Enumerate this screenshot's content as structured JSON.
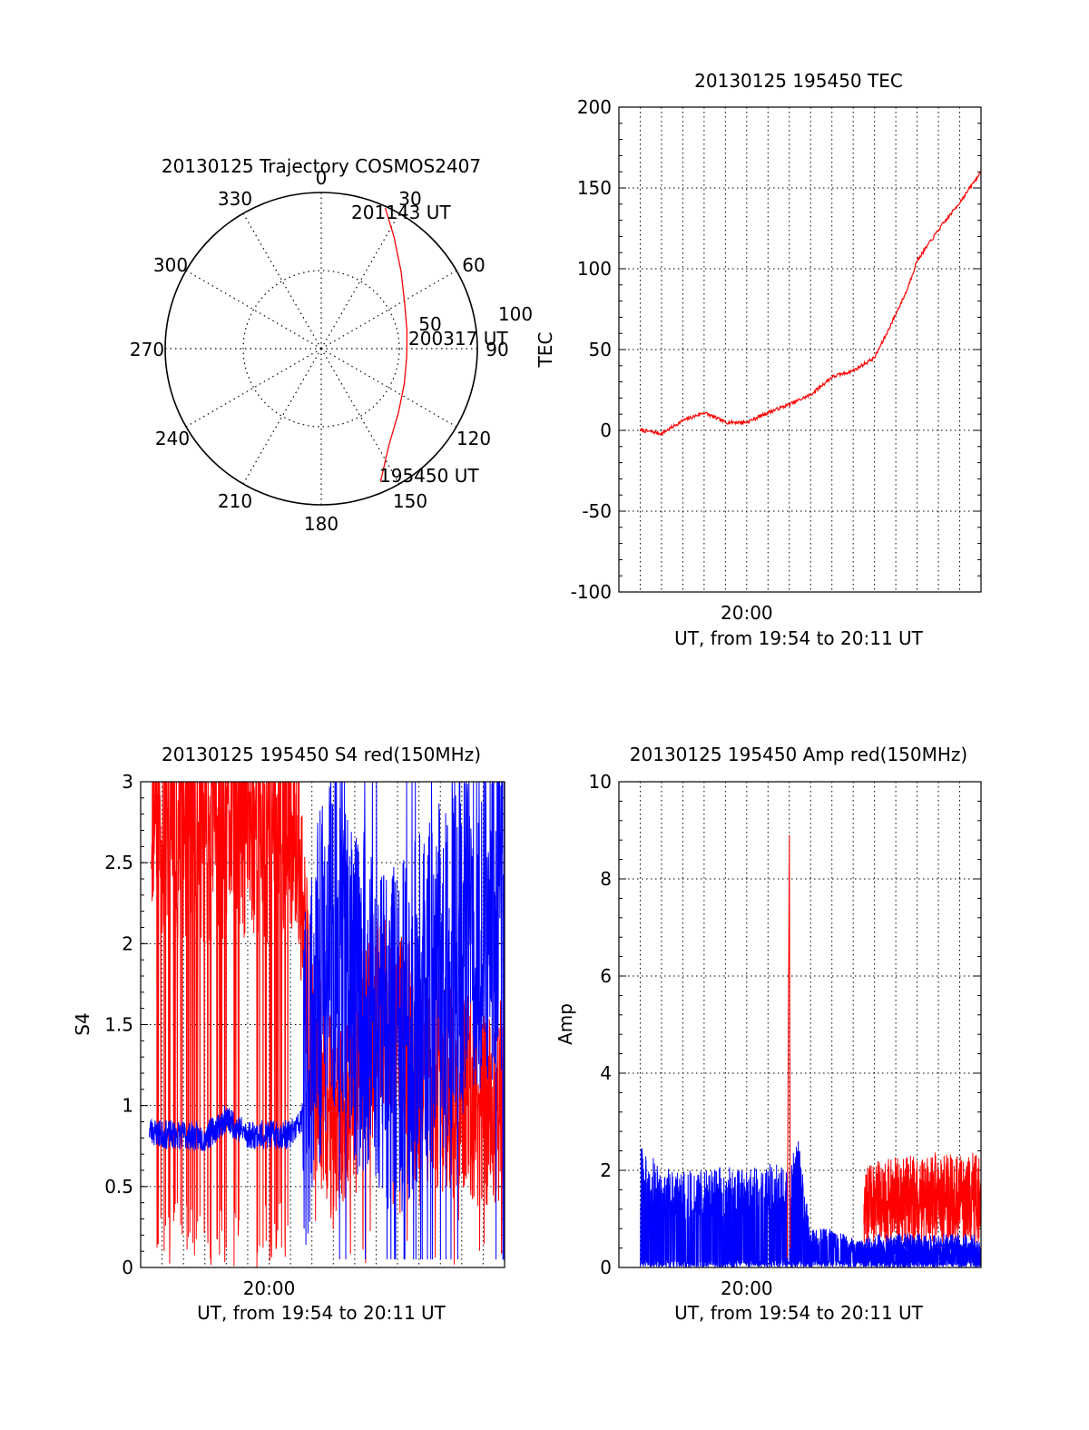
{
  "colors": {
    "red": "#ff0000",
    "blue": "#0000ff",
    "axis": "#000000",
    "grid": "#000000"
  },
  "chart_data": [
    {
      "id": "trajectory",
      "type": "scatter",
      "projection": "polar",
      "title": "20130125 Trajectory COSMOS2407",
      "azimuth_labels": [
        "0",
        "30",
        "60",
        "90",
        "120",
        "150",
        "180",
        "210",
        "240",
        "270",
        "300",
        "330"
      ],
      "radius_labels": [
        "50",
        "100"
      ],
      "grid": true,
      "series": [
        {
          "color": "red",
          "points": [
            {
              "az": 156.0,
              "r": 84.0
            },
            {
              "az": 145.0,
              "r": 68.0
            },
            {
              "az": 130.0,
              "r": 58.0
            },
            {
              "az": 113.0,
              "r": 52.0
            },
            {
              "az": 95.0,
              "r": 49.5
            },
            {
              "az": 78.0,
              "r": 50.5
            },
            {
              "az": 62.0,
              "r": 54.5
            },
            {
              "az": 46.0,
              "r": 64.0
            },
            {
              "az": 33.0,
              "r": 77.0
            },
            {
              "az": 24.5,
              "r": 89.0
            }
          ]
        }
      ],
      "annotations": [
        {
          "text": "201143 UT",
          "az": 27.0,
          "r": 91.0
        },
        {
          "text": "200317 UT",
          "az": 80.0,
          "r": 52.0
        },
        {
          "text": "195450 UT",
          "az": 154.0,
          "r": 84.0
        }
      ]
    },
    {
      "id": "tec",
      "type": "line",
      "title": "20130125 195450 TEC",
      "xlabel": "UT, from 19:54 to 20:11 UT",
      "ylabel": "TEC",
      "x_ticks": [
        {
          "label": "20:00",
          "t": 6.0
        }
      ],
      "x_range": [
        0,
        17
      ],
      "ylim": [
        -100,
        200
      ],
      "y_ticks": [
        -100,
        -50,
        0,
        50,
        100,
        150,
        200
      ],
      "grid": true,
      "series": [
        {
          "color": "red",
          "x": [
            1.0,
            1.6,
            2.0,
            3.0,
            4.0,
            5.0,
            6.0,
            7.0,
            8.0,
            9.0,
            10.0,
            11.0,
            12.0,
            12.5,
            13.0,
            13.5,
            14.0,
            15.0,
            16.0,
            17.0
          ],
          "y": [
            0,
            -1,
            -2,
            6,
            11,
            5,
            5,
            11,
            16,
            22,
            33,
            37,
            45,
            58,
            72,
            86,
            105,
            124,
            141,
            160
          ]
        }
      ]
    },
    {
      "id": "s4",
      "type": "line",
      "title": "20130125 195450 S4 red(150MHz)",
      "xlabel": "UT, from 19:54 to 20:11 UT",
      "ylabel": "S4",
      "x_ticks": [
        {
          "label": "20:00",
          "t": 6.0
        }
      ],
      "x_range": [
        0,
        17
      ],
      "ylim": [
        0,
        3
      ],
      "y_ticks": [
        "0",
        "0.5",
        "1",
        "1.5",
        "2",
        "2.5",
        "3"
      ],
      "grid": true,
      "series": [
        {
          "color": "red",
          "x": [
            0.5,
            1.0,
            2.0,
            3.0,
            4.0,
            5.0,
            6.0,
            7.0,
            7.5,
            8.0,
            9.0,
            10.0,
            11.0,
            12.0,
            13.0,
            14.0,
            15.0,
            16.0,
            17.0
          ],
          "y": [
            2.8,
            3.0,
            3.0,
            3.0,
            3.0,
            3.0,
            3.0,
            3.0,
            2.4,
            1.3,
            0.9,
            1.2,
            1.5,
            1.6,
            1.2,
            1.1,
            1.05,
            1.0,
            1.0
          ]
        },
        {
          "color": "blue",
          "x": [
            0.4,
            1.0,
            2.0,
            3.0,
            4.0,
            5.0,
            6.0,
            7.0,
            7.5,
            8.0,
            8.5,
            9.0,
            9.5,
            10.0,
            11.0,
            12.0,
            13.0,
            14.0,
            15.0,
            16.0,
            17.0
          ],
          "y": [
            0.85,
            0.82,
            0.82,
            0.8,
            0.92,
            0.82,
            0.82,
            0.82,
            0.9,
            1.5,
            1.8,
            2.1,
            2.0,
            1.7,
            1.5,
            1.4,
            1.6,
            1.8,
            2.0,
            2.2,
            2.3
          ]
        }
      ]
    },
    {
      "id": "amp",
      "type": "line",
      "title": "20130125 195450 Amp red(150MHz)",
      "xlabel": "UT, from 19:54 to 20:11 UT",
      "ylabel": "Amp",
      "x_ticks": [
        {
          "label": "20:00",
          "t": 6.0
        }
      ],
      "x_range": [
        0,
        17
      ],
      "ylim": [
        0,
        10
      ],
      "y_ticks": [
        "0",
        "2",
        "4",
        "6",
        "8",
        "10"
      ],
      "grid": true,
      "series": [
        {
          "color": "blue",
          "x": [
            1.0,
            2.0,
            3.0,
            4.0,
            5.0,
            6.0,
            7.0,
            7.5,
            8.0,
            8.4,
            9.0,
            10.0,
            11.0,
            12.0,
            13.0,
            14.0,
            15.0,
            16.0,
            17.0
          ],
          "y": [
            2.5,
            2.1,
            2.0,
            2.0,
            2.1,
            2.0,
            2.2,
            2.1,
            2.0,
            2.8,
            0.8,
            0.8,
            0.6,
            0.5,
            0.5,
            0.5,
            0.5,
            0.5,
            0.5
          ]
        },
        {
          "color": "red",
          "x": [
            7.8,
            8.0,
            8.2,
            11.5,
            12.0,
            13.0,
            14.0,
            15.0,
            16.0,
            17.0
          ],
          "y": [
            0.0,
            8.9,
            0.0,
            1.2,
            1.4,
            1.5,
            1.5,
            1.6,
            1.5,
            1.6
          ]
        }
      ]
    }
  ]
}
